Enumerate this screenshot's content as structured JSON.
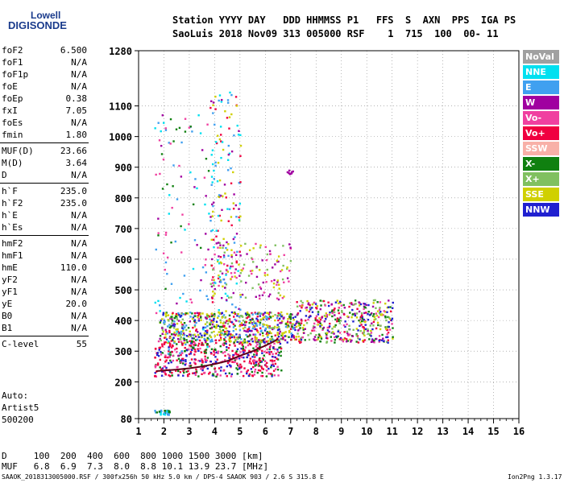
{
  "logo": {
    "line1": "Lowell",
    "line2": "DIGISONDE"
  },
  "header": {
    "line1": "Station YYYY DAY   DDD HHMMSS P1   FFS  S  AXN  PPS  IGA PS",
    "line2": "SaoLuis 2018 Nov09 313 005000 RSF    1  715  100  00- 11"
  },
  "params": [
    {
      "group": [
        {
          "k": "foF2",
          "v": "6.500"
        },
        {
          "k": "foF1",
          "v": "N/A"
        },
        {
          "k": "foF1p",
          "v": "N/A"
        },
        {
          "k": "foE",
          "v": "N/A"
        },
        {
          "k": "foEp",
          "v": "0.38"
        },
        {
          "k": "fxI",
          "v": "7.05"
        },
        {
          "k": "foEs",
          "v": "N/A"
        },
        {
          "k": "fmin",
          "v": "1.80"
        }
      ]
    },
    {
      "group": [
        {
          "k": "MUF(D)",
          "v": "23.66"
        },
        {
          "k": "M(D)",
          "v": "3.64"
        },
        {
          "k": "D",
          "v": "N/A"
        }
      ]
    },
    {
      "group": [
        {
          "k": "h`F",
          "v": "235.0"
        },
        {
          "k": "h`F2",
          "v": "235.0"
        },
        {
          "k": "h`E",
          "v": "N/A"
        },
        {
          "k": "h`Es",
          "v": "N/A"
        }
      ]
    },
    {
      "group": [
        {
          "k": "hmF2",
          "v": "N/A"
        },
        {
          "k": "hmF1",
          "v": "N/A"
        },
        {
          "k": "hmE",
          "v": "110.0"
        },
        {
          "k": "yF2",
          "v": "N/A"
        },
        {
          "k": "yF1",
          "v": "N/A"
        },
        {
          "k": "yE",
          "v": "20.0"
        },
        {
          "k": "B0",
          "v": "N/A"
        },
        {
          "k": "B1",
          "v": "N/A"
        }
      ]
    },
    {
      "group": [
        {
          "k": "C-level",
          "v": "55"
        }
      ]
    }
  ],
  "auto": {
    "l1": "Auto:",
    "l2": "Artist5",
    "l3": "500200"
  },
  "legend": [
    {
      "label": "NoVal",
      "color": "#a0a0a0"
    },
    {
      "label": "NNE",
      "color": "#00e0f0"
    },
    {
      "label": "E",
      "color": "#40a0f0"
    },
    {
      "label": "W",
      "color": "#a000a0"
    },
    {
      "label": "Vo-",
      "color": "#f040a0"
    },
    {
      "label": "Vo+",
      "color": "#f00040"
    },
    {
      "label": "SSW",
      "color": "#f8b0a8"
    },
    {
      "label": "X-",
      "color": "#108010"
    },
    {
      "label": "X+",
      "color": "#80c060"
    },
    {
      "label": "SSE",
      "color": "#d0d000"
    },
    {
      "label": "NNW",
      "color": "#2020d0"
    }
  ],
  "bottom": {
    "dline": "D     100  200  400  600  800 1000 1500 3000 [km]",
    "mufline": "MUF   6.8  6.9  7.3  8.0  8.8 10.1 13.9 23.7 [MHz]",
    "footer": "SAAOK_2018313005000.RSF / 300fx256h 50 kHz 5.0 km / DPS-4 SAAOK 903 / 2.6 S 315.8 E",
    "version": "Ion2Png 1.3.17"
  },
  "chart_data": {
    "type": "scatter",
    "xlim": [
      1,
      16
    ],
    "ylim": [
      80,
      1280
    ],
    "xticks": [
      "1",
      "2",
      "3",
      "4",
      "5",
      "6",
      "7",
      "8",
      "9",
      "10",
      "11",
      "12",
      "13",
      "14",
      "15",
      "16"
    ],
    "yticks": [
      {
        "value": 80,
        "label": "80"
      },
      {
        "value": 200,
        "label": "200"
      },
      {
        "value": 300,
        "label": "300"
      },
      {
        "value": 400,
        "label": "400"
      },
      {
        "value": 500,
        "label": "500"
      },
      {
        "value": 600,
        "label": "600"
      },
      {
        "value": 700,
        "label": "700"
      },
      {
        "value": 800,
        "label": "800"
      },
      {
        "value": 900,
        "label": "900"
      },
      {
        "value": 1000,
        "label": "1000"
      },
      {
        "value": 1100,
        "label": "1100"
      },
      {
        "value": 1280,
        "label": "1280"
      }
    ],
    "grid": "dotted",
    "legend_position": "right",
    "trace": {
      "color": "#600018",
      "x": [
        1.7,
        2.0,
        2.5,
        3.0,
        3.5,
        4.0,
        4.5,
        5.0,
        5.5,
        6.0,
        6.3,
        6.5
      ],
      "y": [
        235,
        237,
        240,
        244,
        250,
        258,
        268,
        285,
        300,
        318,
        330,
        340
      ]
    },
    "clusters": [
      {
        "x": [
          1.6,
          6.6
        ],
        "y": [
          220,
          340
        ],
        "n": 520,
        "colors": [
          "#f00040",
          "#f00040",
          "#f040a0",
          "#108010",
          "#2020d0"
        ]
      },
      {
        "x": [
          1.8,
          7.2
        ],
        "y": [
          330,
          430
        ],
        "n": 650,
        "colors": [
          "#d0d000",
          "#d0d000",
          "#80c060",
          "#a000a0",
          "#f00040",
          "#108010",
          "#2020d0",
          "#40a0f0"
        ]
      },
      {
        "x": [
          7.2,
          11.0
        ],
        "y": [
          330,
          470
        ],
        "n": 420,
        "colors": [
          "#d0d000",
          "#80c060",
          "#a000a0",
          "#f00040",
          "#f040a0",
          "#2020d0",
          "#108010"
        ]
      },
      {
        "x": [
          3.8,
          7.0
        ],
        "y": [
          470,
          660
        ],
        "n": 150,
        "colors": [
          "#d0d000",
          "#80c060",
          "#a000a0",
          "#f040a0"
        ]
      },
      {
        "x": [
          3.8,
          5.0
        ],
        "y": [
          400,
          1150
        ],
        "n": 170,
        "colors": [
          "#00e0f0",
          "#40a0f0",
          "#a000a0",
          "#f00040",
          "#d0d000"
        ]
      },
      {
        "x": [
          1.6,
          3.8
        ],
        "y": [
          280,
          1080
        ],
        "n": 120,
        "colors": [
          "#00e0f0",
          "#40a0f0",
          "#a000a0",
          "#f040a0",
          "#108010"
        ]
      },
      {
        "x": [
          1.6,
          2.2
        ],
        "y": [
          95,
          110
        ],
        "n": 30,
        "colors": [
          "#40a0f0",
          "#00e0f0",
          "#108010"
        ]
      },
      {
        "x": [
          6.8,
          7.1
        ],
        "y": [
          880,
          895
        ],
        "n": 10,
        "colors": [
          "#a000a0"
        ]
      }
    ]
  }
}
